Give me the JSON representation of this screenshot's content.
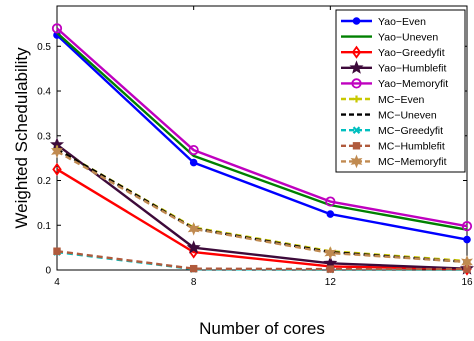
{
  "chart_data": {
    "type": "line",
    "xlabel": "Number of cores",
    "ylabel": "Weighted Schedulability",
    "x": [
      4,
      8,
      12,
      16
    ],
    "xticks": [
      "4",
      "8",
      "12",
      "16"
    ],
    "yticks": [
      "0",
      "0.1",
      "0.2",
      "0.3",
      "0.4",
      "0.5"
    ],
    "xlim": [
      4,
      16
    ],
    "ylim": [
      0,
      0.59
    ],
    "grid": false,
    "legend_position": "top-right",
    "series": [
      {
        "name": "Yao−Even",
        "values": [
          0.525,
          0.24,
          0.125,
          0.068
        ],
        "color": "#0000ff",
        "dash": "solid",
        "marker": "dot"
      },
      {
        "name": "Yao−Uneven",
        "values": [
          0.53,
          0.255,
          0.145,
          0.09
        ],
        "color": "#008000",
        "dash": "solid",
        "marker": "none"
      },
      {
        "name": "Yao−Greedyfit",
        "values": [
          0.225,
          0.04,
          0.008,
          0.002
        ],
        "color": "#ff0000",
        "dash": "solid",
        "marker": "diamond"
      },
      {
        "name": "Yao−Humblefit",
        "values": [
          0.28,
          0.05,
          0.015,
          0.003
        ],
        "color": "#3d0a3a",
        "dash": "solid",
        "marker": "star"
      },
      {
        "name": "Yao−Memoryfit",
        "values": [
          0.54,
          0.268,
          0.153,
          0.098
        ],
        "color": "#bf00bf",
        "dash": "solid",
        "marker": "circle"
      },
      {
        "name": "MC−Even",
        "values": [
          0.27,
          0.095,
          0.042,
          0.02
        ],
        "color": "#c8c800",
        "dash": "dashed",
        "marker": "plus"
      },
      {
        "name": "MC−Uneven",
        "values": [
          0.27,
          0.093,
          0.04,
          0.018
        ],
        "color": "#000000",
        "dash": "dashed",
        "marker": "none"
      },
      {
        "name": "MC−Greedyfit",
        "values": [
          0.04,
          0.002,
          0.001,
          0.001
        ],
        "color": "#00bfbf",
        "dash": "dashed",
        "marker": "x"
      },
      {
        "name": "MC−Humblefit",
        "values": [
          0.042,
          0.003,
          0.002,
          0.002
        ],
        "color": "#b05a3c",
        "dash": "dashed",
        "marker": "square"
      },
      {
        "name": "MC−Memoryfit",
        "values": [
          0.265,
          0.092,
          0.038,
          0.018
        ],
        "color": "#c08a50",
        "dash": "dashed",
        "marker": "hexstar"
      }
    ]
  }
}
